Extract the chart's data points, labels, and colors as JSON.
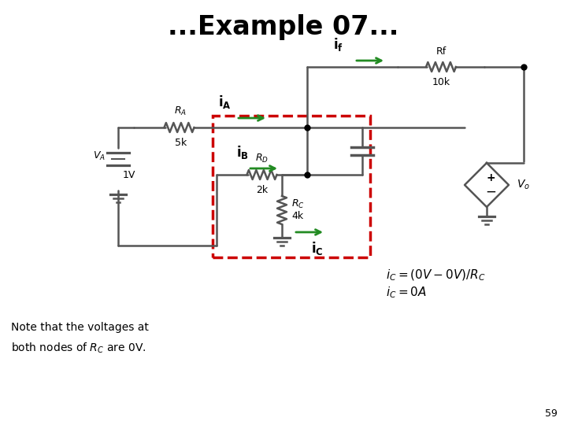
{
  "title": "...Example 07...",
  "title_fontsize": 24,
  "eq1": "$i_C = (0V - 0V)/ R_C$",
  "eq2": "$i_C = 0A$",
  "page_num": "59",
  "wire_color": "#555555",
  "green_color": "#228B22",
  "red_color": "#cc0000",
  "bg_color": "#ffffff"
}
